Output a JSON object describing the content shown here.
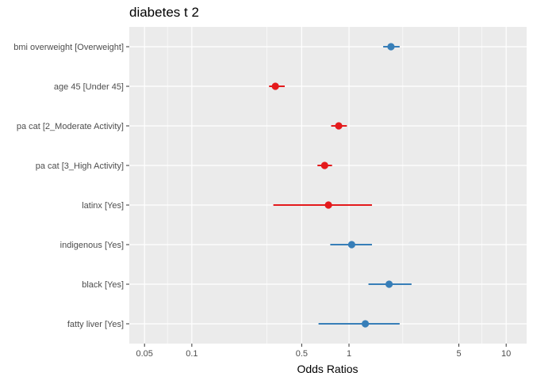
{
  "chart_data": {
    "type": "forest",
    "title": "diabetes t 2",
    "xlabel": "Odds Ratios",
    "ylabel": "",
    "x_scale": "log10",
    "xlim": [
      0.04,
      13.5
    ],
    "major_ticks": [
      0.05,
      0.1,
      0.5,
      1,
      5,
      10
    ],
    "major_tick_labels": [
      "0.05",
      "0.1",
      "0.5",
      "1",
      "5",
      "10"
    ],
    "minor_gridlines": [
      0.07,
      0.3,
      2.2,
      7
    ],
    "grid": true,
    "colors": {
      "positive": "#377eb8",
      "negative": "#e41a1c",
      "panel": "#ebebeb",
      "grid": "#ffffff"
    },
    "terms": [
      {
        "label": "bmi overweight [Overweight]",
        "estimate": 1.85,
        "lower": 1.65,
        "upper": 2.1,
        "direction": "positive"
      },
      {
        "label": "age 45 [Under 45]",
        "estimate": 0.34,
        "lower": 0.31,
        "upper": 0.39,
        "direction": "negative"
      },
      {
        "label": "pa cat [2_Moderate Activity]",
        "estimate": 0.86,
        "lower": 0.77,
        "upper": 0.97,
        "direction": "negative"
      },
      {
        "label": "pa cat [3_High Activity]",
        "estimate": 0.7,
        "lower": 0.63,
        "upper": 0.78,
        "direction": "negative"
      },
      {
        "label": "latinx [Yes]",
        "estimate": 0.74,
        "lower": 0.33,
        "upper": 1.4,
        "direction": "negative"
      },
      {
        "label": "indigenous [Yes]",
        "estimate": 1.04,
        "lower": 0.76,
        "upper": 1.4,
        "direction": "positive"
      },
      {
        "label": "black [Yes]",
        "estimate": 1.8,
        "lower": 1.33,
        "upper": 2.5,
        "direction": "positive"
      },
      {
        "label": "fatty liver [Yes]",
        "estimate": 1.27,
        "lower": 0.64,
        "upper": 2.1,
        "direction": "positive"
      }
    ]
  }
}
